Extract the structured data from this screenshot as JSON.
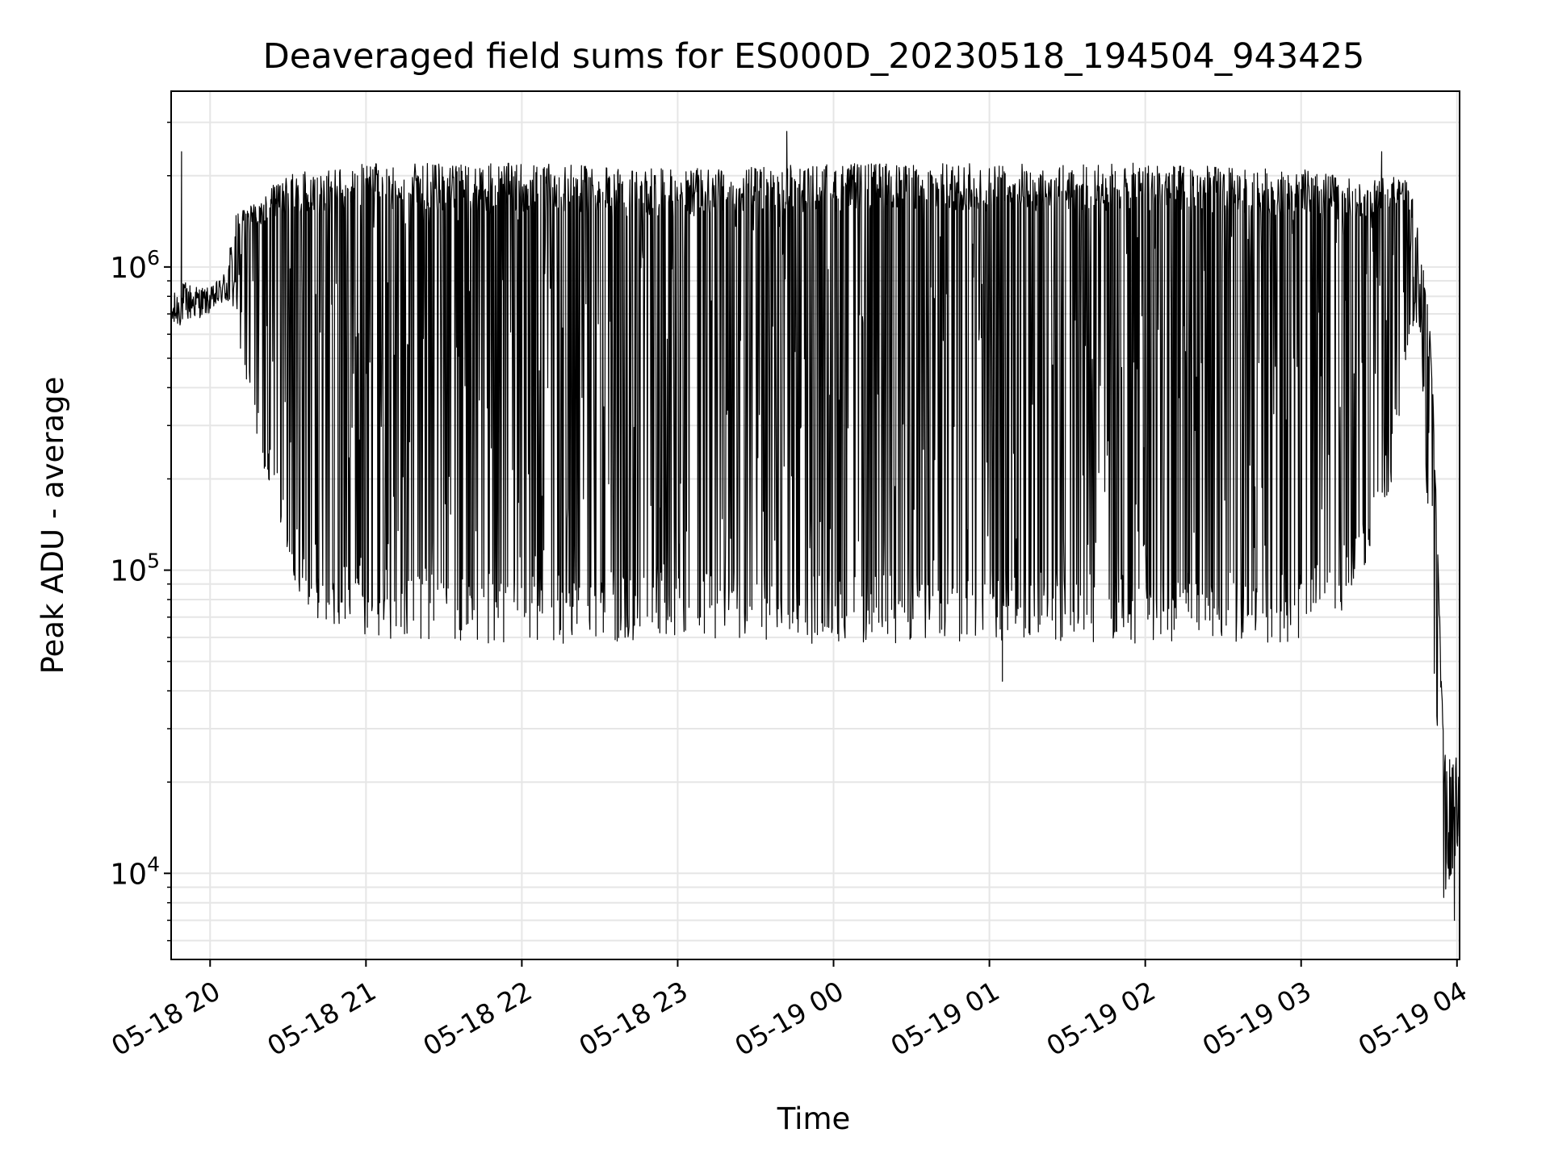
{
  "chart_data": {
    "type": "line",
    "title": "Deaveraged field sums for ES000D_20230518_194504_943425",
    "xlabel": "Time",
    "ylabel": "Peak ADU - average",
    "yscale": "log",
    "ylim": [
      5200,
      3800000
    ],
    "xlim": [
      "05-18 19:45",
      "05-19 04:01"
    ],
    "grid": true,
    "line_color": "#000000",
    "x_ticks": [
      {
        "label": "05-18 20",
        "time": "05-18 20:00"
      },
      {
        "label": "05-18 21",
        "time": "05-18 21:00"
      },
      {
        "label": "05-18 22",
        "time": "05-18 22:00"
      },
      {
        "label": "05-18 23",
        "time": "05-18 23:00"
      },
      {
        "label": "05-19 00",
        "time": "05-19 00:00"
      },
      {
        "label": "05-19 01",
        "time": "05-19 01:00"
      },
      {
        "label": "05-19 02",
        "time": "05-19 02:00"
      },
      {
        "label": "05-19 03",
        "time": "05-19 03:00"
      },
      {
        "label": "05-19 04",
        "time": "05-19 04:00"
      }
    ],
    "y_ticks": [
      {
        "base": "10",
        "exp": "4",
        "value": 10000
      },
      {
        "base": "10",
        "exp": "5",
        "value": 100000
      },
      {
        "base": "10",
        "exp": "6",
        "value": 1000000
      }
    ],
    "series": [
      {
        "envelope": {
          "time": [
            "05-18 19:45",
            "05-18 19:50",
            "05-18 20:00",
            "05-18 20:05",
            "05-18 20:10",
            "05-18 20:15",
            "05-18 20:20",
            "05-18 20:25",
            "05-18 20:30",
            "05-18 20:35",
            "05-18 20:40",
            "05-18 20:45",
            "05-18 21:00",
            "05-18 21:30",
            "05-18 22:00",
            "05-18 23:00",
            "05-19 00:00",
            "05-19 01:00",
            "05-19 02:00",
            "05-19 03:00",
            "05-19 03:15",
            "05-19 03:25",
            "05-19 03:35",
            "05-19 03:42",
            "05-19 03:46",
            "05-19 03:50",
            "05-19 03:55",
            "05-19 04:00"
          ],
          "upper": [
            800000,
            900000,
            850000,
            950000,
            1500000,
            1600000,
            1700000,
            1900000,
            2000000,
            2100000,
            2100000,
            2100000,
            2200000,
            2200000,
            2200000,
            2100000,
            2200000,
            2200000,
            2200000,
            2100000,
            2000000,
            1900000,
            2000000,
            1900000,
            1200000,
            600000,
            25000,
            28000
          ],
          "lower": [
            600000,
            650000,
            700000,
            750000,
            650000,
            350000,
            220000,
            150000,
            110000,
            80000,
            70000,
            65000,
            60000,
            58000,
            57000,
            58000,
            57000,
            58000,
            57000,
            58000,
            70000,
            100000,
            200000,
            600000,
            600000,
            80000,
            7500,
            12000
          ]
        },
        "notable_points": [
          {
            "time": "05-18 19:49",
            "value": 2400000
          },
          {
            "time": "05-18 23:42",
            "value": 2800000
          },
          {
            "time": "05-19 01:05",
            "value": 43000
          },
          {
            "time": "05-19 03:31",
            "value": 2400000
          },
          {
            "time": "05-19 03:59",
            "value": 7000
          }
        ]
      }
    ]
  }
}
